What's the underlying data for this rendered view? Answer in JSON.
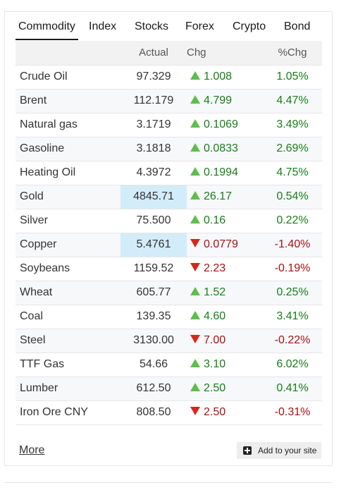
{
  "tabs": [
    {
      "label": "Commodity",
      "active": true
    },
    {
      "label": "Index",
      "active": false
    },
    {
      "label": "Stocks",
      "active": false
    },
    {
      "label": "Forex",
      "active": false
    },
    {
      "label": "Crypto",
      "active": false
    },
    {
      "label": "Bond",
      "active": false
    }
  ],
  "table": {
    "headers": {
      "name": "",
      "actual": "Actual",
      "chg": "Chg",
      "pct": "%Chg"
    },
    "rows": [
      {
        "name": "Crude Oil",
        "actual": "97.329",
        "chg": "1.008",
        "pct": "1.05%",
        "direction": "up",
        "highlight": false
      },
      {
        "name": "Brent",
        "actual": "112.179",
        "chg": "4.799",
        "pct": "4.47%",
        "direction": "up",
        "highlight": false
      },
      {
        "name": "Natural gas",
        "actual": "3.1719",
        "chg": "0.1069",
        "pct": "3.49%",
        "direction": "up",
        "highlight": false
      },
      {
        "name": "Gasoline",
        "actual": "3.1818",
        "chg": "0.0833",
        "pct": "2.69%",
        "direction": "up",
        "highlight": false
      },
      {
        "name": "Heating Oil",
        "actual": "4.3972",
        "chg": "0.1994",
        "pct": "4.75%",
        "direction": "up",
        "highlight": false
      },
      {
        "name": "Gold",
        "actual": "4845.71",
        "chg": "26.17",
        "pct": "0.54%",
        "direction": "up",
        "highlight": true
      },
      {
        "name": "Silver",
        "actual": "75.500",
        "chg": "0.16",
        "pct": "0.22%",
        "direction": "up",
        "highlight": false
      },
      {
        "name": "Copper",
        "actual": "5.4761",
        "chg": "0.0779",
        "pct": "-1.40%",
        "direction": "down",
        "highlight": true
      },
      {
        "name": "Soybeans",
        "actual": "1159.52",
        "chg": "2.23",
        "pct": "-0.19%",
        "direction": "down",
        "highlight": false
      },
      {
        "name": "Wheat",
        "actual": "605.77",
        "chg": "1.52",
        "pct": "0.25%",
        "direction": "up",
        "highlight": false
      },
      {
        "name": "Coal",
        "actual": "139.35",
        "chg": "4.60",
        "pct": "3.41%",
        "direction": "up",
        "highlight": false
      },
      {
        "name": "Steel",
        "actual": "3130.00",
        "chg": "7.00",
        "pct": "-0.22%",
        "direction": "down",
        "highlight": false
      },
      {
        "name": "TTF Gas",
        "actual": "54.66",
        "chg": "3.10",
        "pct": "6.02%",
        "direction": "up",
        "highlight": false
      },
      {
        "name": "Lumber",
        "actual": "612.50",
        "chg": "2.50",
        "pct": "0.41%",
        "direction": "up",
        "highlight": false
      },
      {
        "name": "Iron Ore CNY",
        "actual": "808.50",
        "chg": "2.50",
        "pct": "-0.31%",
        "direction": "down",
        "highlight": false
      }
    ]
  },
  "footer": {
    "more_label": "More",
    "add_label": "Add to your site"
  },
  "colors": {
    "up_text": "#1a7d1a",
    "down_text": "#a51212",
    "up_arrow": "#5cbf4a",
    "down_arrow": "#d8261c",
    "highlight": "#d3ecf9"
  },
  "icons": {
    "up": "triangle-up-icon",
    "down": "triangle-down-icon",
    "add": "plus-square-icon"
  }
}
